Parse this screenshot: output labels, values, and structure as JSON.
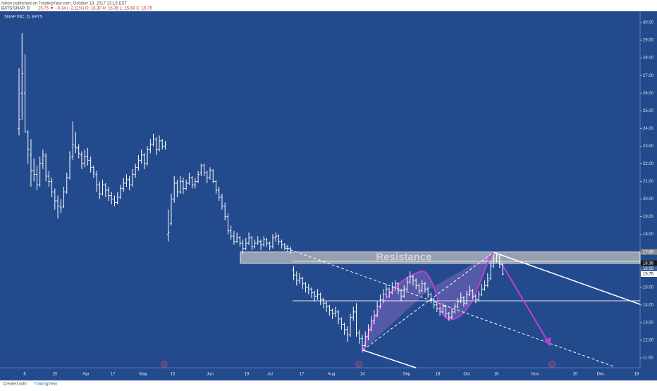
{
  "header": {
    "published": "forker published on TradingView.com, October 18, 2017 23:19 EST",
    "symbol": "BATS:SNAP, D",
    "quote": "15.75 ▼ −0.34 (−2.11%) O: 16.30 H: 16.35 L: 15.69 C: 15.75",
    "pane_title": "SNAP INC, D, BATS"
  },
  "footer": {
    "created": "Created with",
    "brand": "TradingView"
  },
  "chart_data": {
    "type": "ohlc",
    "color": "#ffffff",
    "background": "#234a8c",
    "ylim": [
      10.44,
      30.64
    ],
    "yticks": [
      {
        "value": 11,
        "label": "11.00"
      },
      {
        "value": 12,
        "label": "12.00"
      },
      {
        "value": 13,
        "label": "13.00"
      },
      {
        "value": 14,
        "label": "14.00"
      },
      {
        "value": 15,
        "label": "15.00"
      },
      {
        "value": 16,
        "label": "16.00"
      },
      {
        "value": 17,
        "label": "17.00"
      },
      {
        "value": 18,
        "label": "18.00"
      },
      {
        "value": 19,
        "label": "19.00"
      },
      {
        "value": 20,
        "label": "20.00"
      },
      {
        "value": 21,
        "label": "21.00"
      },
      {
        "value": 22,
        "label": "22.00"
      },
      {
        "value": 23,
        "label": "23.00"
      },
      {
        "value": 24,
        "label": "24.00"
      },
      {
        "value": 25,
        "label": "25.00"
      },
      {
        "value": 26,
        "label": "26.00"
      },
      {
        "value": 27,
        "label": "27.00"
      },
      {
        "value": 28,
        "label": "28.00"
      },
      {
        "value": 29,
        "label": "29.00"
      },
      {
        "value": 30,
        "label": "30.00"
      }
    ],
    "categories": [
      "6",
      "20",
      "Apr",
      "17",
      "May",
      "15",
      "Jun",
      "19",
      "Jul",
      "17",
      "Aug",
      "14",
      "Sep",
      "18",
      "Oct",
      "16",
      "Nov",
      "20",
      "Dec",
      "18"
    ],
    "price_tags": [
      {
        "value": 17.0,
        "label": "17.00"
      },
      {
        "value": 16.36,
        "label": "16.36"
      },
      {
        "value": 16.05,
        "label": "16.05"
      },
      {
        "value": 15.75,
        "label": "15.75"
      }
    ],
    "events": [
      "E",
      "E",
      "E"
    ],
    "annotation": "Resistance",
    "bars": [
      [
        24.0,
        27.4,
        23.6,
        24.5
      ],
      [
        26.0,
        29.4,
        24.5,
        27.1
      ],
      [
        26.0,
        28.2,
        23.8,
        23.8
      ],
      [
        23.8,
        23.9,
        22.0,
        22.8
      ],
      [
        22.5,
        23.4,
        20.7,
        21.6
      ],
      [
        21.6,
        22.3,
        21.0,
        21.4
      ],
      [
        21.4,
        21.9,
        20.5,
        20.8
      ],
      [
        20.8,
        22.4,
        20.7,
        22.0
      ],
      [
        22.0,
        22.8,
        21.7,
        22.5
      ],
      [
        22.4,
        22.6,
        21.0,
        21.3
      ],
      [
        21.3,
        21.6,
        20.7,
        21.0
      ],
      [
        21.0,
        21.2,
        20.1,
        20.4
      ],
      [
        20.4,
        20.6,
        19.4,
        19.9
      ],
      [
        19.9,
        20.2,
        18.9,
        19.6
      ],
      [
        19.6,
        20.0,
        19.2,
        19.5
      ],
      [
        19.6,
        20.7,
        19.5,
        20.4
      ],
      [
        20.4,
        21.5,
        20.3,
        21.2
      ],
      [
        21.2,
        22.7,
        21.1,
        22.3
      ],
      [
        22.4,
        24.4,
        22.2,
        23.1
      ],
      [
        23.0,
        23.8,
        22.6,
        22.9
      ],
      [
        22.9,
        23.1,
        22.3,
        22.6
      ],
      [
        22.5,
        22.7,
        21.7,
        22.0
      ],
      [
        22.0,
        22.8,
        21.8,
        22.4
      ],
      [
        22.4,
        22.9,
        21.9,
        22.2
      ],
      [
        22.2,
        22.4,
        21.5,
        21.8
      ],
      [
        21.8,
        21.9,
        21.2,
        21.5
      ],
      [
        21.4,
        21.6,
        20.4,
        20.8
      ],
      [
        20.8,
        21.0,
        20.0,
        20.3
      ],
      [
        20.3,
        21.1,
        20.2,
        20.8
      ],
      [
        20.8,
        20.9,
        20.1,
        20.5
      ],
      [
        20.5,
        20.7,
        19.9,
        20.2
      ],
      [
        20.2,
        20.4,
        19.7,
        20.0
      ],
      [
        20.0,
        20.2,
        19.6,
        19.8
      ],
      [
        19.8,
        20.4,
        19.7,
        20.1
      ],
      [
        20.1,
        20.8,
        20.0,
        20.6
      ],
      [
        20.6,
        21.2,
        20.4,
        20.9
      ],
      [
        20.9,
        21.4,
        20.7,
        21.1
      ],
      [
        21.1,
        21.3,
        20.5,
        20.8
      ],
      [
        20.8,
        21.7,
        20.7,
        21.4
      ],
      [
        21.4,
        22.0,
        21.2,
        21.8
      ],
      [
        21.8,
        22.5,
        21.6,
        22.2
      ],
      [
        22.2,
        22.8,
        22.0,
        22.5
      ],
      [
        22.5,
        22.6,
        21.7,
        22.0
      ],
      [
        22.0,
        23.0,
        21.9,
        22.8
      ],
      [
        22.8,
        23.4,
        22.6,
        23.1
      ],
      [
        23.1,
        23.7,
        23.0,
        23.4
      ],
      [
        23.4,
        23.5,
        22.5,
        22.8
      ],
      [
        22.8,
        23.6,
        22.7,
        23.3
      ],
      [
        23.3,
        23.4,
        22.8,
        23.0
      ],
      [
        23.0,
        23.3,
        22.8,
        23.1
      ],
      [
        18.0,
        19.4,
        17.6,
        18.1
      ],
      [
        18.6,
        20.3,
        18.5,
        20.0
      ],
      [
        20.0,
        21.3,
        19.8,
        20.9
      ],
      [
        20.9,
        21.1,
        20.1,
        20.4
      ],
      [
        20.4,
        21.3,
        20.3,
        21.0
      ],
      [
        21.0,
        21.2,
        20.3,
        20.6
      ],
      [
        20.6,
        21.1,
        20.5,
        20.9
      ],
      [
        20.9,
        21.5,
        20.8,
        21.2
      ],
      [
        21.2,
        21.3,
        20.6,
        20.8
      ],
      [
        20.8,
        21.2,
        20.6,
        21.0
      ],
      [
        21.0,
        21.6,
        20.9,
        21.4
      ],
      [
        21.5,
        22.0,
        21.3,
        21.9
      ],
      [
        21.9,
        22.0,
        21.3,
        21.5
      ],
      [
        21.5,
        21.6,
        20.9,
        21.2
      ],
      [
        21.2,
        21.8,
        21.1,
        21.6
      ],
      [
        21.6,
        21.7,
        20.9,
        21.0
      ],
      [
        21.0,
        21.1,
        20.3,
        20.5
      ],
      [
        20.5,
        20.7,
        19.9,
        20.1
      ],
      [
        20.1,
        20.3,
        19.4,
        19.6
      ],
      [
        19.6,
        19.8,
        18.8,
        19.0
      ],
      [
        19.0,
        19.2,
        18.0,
        18.2
      ],
      [
        18.2,
        18.5,
        17.7,
        17.9
      ],
      [
        17.9,
        18.2,
        17.4,
        17.6
      ],
      [
        17.6,
        18.1,
        17.5,
        17.8
      ],
      [
        17.8,
        17.9,
        17.3,
        17.5
      ],
      [
        17.5,
        17.7,
        16.9,
        17.2
      ],
      [
        17.2,
        17.8,
        17.1,
        17.5
      ],
      [
        17.5,
        18.1,
        17.4,
        17.8
      ],
      [
        17.8,
        17.9,
        17.1,
        17.3
      ],
      [
        17.3,
        17.7,
        17.2,
        17.5
      ],
      [
        17.5,
        17.9,
        17.4,
        17.6
      ],
      [
        17.6,
        17.7,
        17.1,
        17.4
      ],
      [
        17.4,
        17.9,
        17.3,
        17.7
      ],
      [
        17.7,
        17.8,
        17.3,
        17.5
      ],
      [
        17.5,
        17.6,
        17.1,
        17.3
      ],
      [
        17.3,
        18.0,
        17.2,
        17.8
      ],
      [
        17.8,
        18.1,
        17.6,
        17.9
      ],
      [
        17.9,
        18.0,
        17.4,
        17.6
      ],
      [
        17.6,
        17.7,
        17.2,
        17.4
      ],
      [
        17.4,
        17.5,
        17.1,
        17.3
      ],
      [
        17.3,
        17.4,
        17.0,
        17.2
      ],
      [
        17.2,
        17.3,
        16.9,
        17.1
      ],
      [
        16.0,
        16.2,
        15.4,
        15.7
      ],
      [
        15.7,
        15.9,
        15.1,
        15.4
      ],
      [
        15.4,
        15.8,
        15.2,
        15.5
      ],
      [
        15.5,
        15.6,
        14.9,
        15.2
      ],
      [
        15.2,
        15.3,
        14.7,
        15.0
      ],
      [
        15.0,
        15.2,
        14.6,
        14.9
      ],
      [
        14.9,
        15.0,
        14.4,
        14.7
      ],
      [
        14.7,
        14.8,
        14.2,
        14.5
      ],
      [
        14.5,
        14.9,
        14.3,
        14.6
      ],
      [
        14.6,
        14.7,
        14.0,
        14.3
      ],
      [
        14.3,
        14.4,
        13.8,
        14.1
      ],
      [
        14.1,
        14.2,
        13.6,
        13.9
      ],
      [
        13.9,
        14.0,
        13.4,
        13.7
      ],
      [
        13.7,
        13.8,
        13.2,
        13.5
      ],
      [
        13.5,
        13.9,
        13.3,
        13.6
      ],
      [
        13.6,
        13.7,
        12.9,
        13.2
      ],
      [
        13.2,
        13.3,
        12.6,
        12.9
      ],
      [
        12.9,
        13.0,
        12.3,
        12.6
      ],
      [
        12.6,
        12.8,
        11.9,
        12.3
      ],
      [
        12.3,
        13.5,
        12.2,
        13.3
      ],
      [
        13.3,
        13.9,
        13.1,
        13.6
      ],
      [
        13.6,
        14.1,
        12.2,
        12.4
      ],
      [
        12.4,
        12.6,
        11.8,
        12.1
      ],
      [
        12.1,
        12.3,
        11.3,
        11.7
      ],
      [
        11.7,
        12.5,
        11.6,
        12.2
      ],
      [
        12.2,
        12.9,
        12.0,
        12.6
      ],
      [
        12.6,
        13.4,
        12.5,
        13.1
      ],
      [
        13.1,
        13.7,
        12.9,
        13.4
      ],
      [
        13.4,
        14.2,
        13.3,
        13.9
      ],
      [
        13.9,
        14.6,
        13.8,
        14.3
      ],
      [
        14.3,
        14.9,
        14.1,
        14.6
      ],
      [
        14.6,
        15.2,
        14.4,
        14.9
      ],
      [
        14.9,
        15.0,
        14.4,
        14.7
      ],
      [
        14.7,
        15.3,
        14.6,
        15.0
      ],
      [
        15.0,
        15.4,
        14.8,
        15.2
      ],
      [
        15.2,
        15.3,
        14.6,
        14.8
      ],
      [
        14.8,
        14.9,
        14.2,
        14.5
      ],
      [
        14.5,
        15.1,
        14.4,
        14.9
      ],
      [
        14.9,
        15.6,
        14.8,
        15.3
      ],
      [
        15.3,
        15.9,
        15.2,
        15.6
      ],
      [
        15.6,
        15.7,
        15.1,
        15.4
      ],
      [
        15.4,
        15.5,
        14.9,
        15.1
      ],
      [
        15.1,
        15.2,
        14.6,
        14.8
      ],
      [
        14.8,
        15.4,
        14.7,
        15.2
      ],
      [
        15.2,
        15.3,
        14.7,
        14.9
      ],
      [
        14.9,
        15.0,
        14.4,
        14.6
      ],
      [
        14.6,
        14.7,
        14.1,
        14.3
      ],
      [
        14.3,
        14.4,
        13.8,
        14.0
      ],
      [
        14.0,
        14.2,
        13.6,
        13.8
      ],
      [
        13.8,
        13.9,
        13.4,
        13.6
      ],
      [
        13.6,
        14.1,
        13.5,
        13.9
      ],
      [
        13.9,
        14.0,
        13.3,
        13.5
      ],
      [
        13.5,
        13.6,
        13.1,
        13.3
      ],
      [
        13.3,
        13.8,
        13.2,
        13.6
      ],
      [
        13.6,
        14.1,
        13.5,
        13.9
      ],
      [
        13.9,
        14.4,
        13.8,
        14.2
      ],
      [
        14.2,
        14.7,
        14.1,
        14.4
      ],
      [
        14.4,
        14.5,
        13.9,
        14.1
      ],
      [
        14.1,
        14.8,
        14.0,
        14.6
      ],
      [
        14.6,
        15.1,
        14.5,
        14.8
      ],
      [
        14.8,
        14.9,
        14.3,
        14.5
      ],
      [
        14.5,
        14.6,
        14.1,
        14.3
      ],
      [
        14.3,
        14.8,
        14.2,
        14.6
      ],
      [
        14.6,
        15.2,
        14.5,
        14.9
      ],
      [
        14.9,
        15.4,
        14.8,
        15.1
      ],
      [
        15.1,
        15.8,
        15.0,
        15.4
      ],
      [
        15.5,
        16.4,
        15.4,
        16.2
      ],
      [
        16.2,
        16.9,
        16.1,
        16.6
      ],
      [
        16.6,
        16.9,
        16.4,
        16.8
      ],
      [
        16.7,
        16.9,
        16.1,
        16.3
      ],
      [
        16.3,
        16.35,
        15.69,
        15.75
      ]
    ]
  }
}
